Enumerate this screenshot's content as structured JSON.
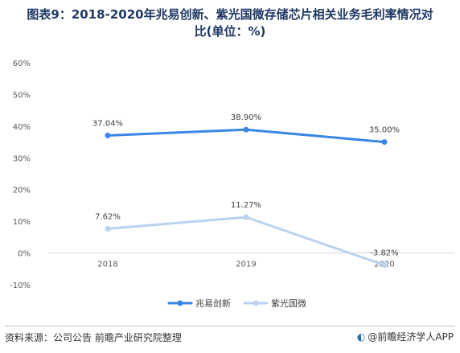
{
  "title": {
    "line1": "图表9：2018-2020年兆易创新、紫光国微存储芯片相关业务毛利率情况对",
    "line2": "比(单位：%)"
  },
  "chart_data": {
    "type": "line",
    "categories": [
      "2018",
      "2019",
      "2020"
    ],
    "series": [
      {
        "name": "兆易创新",
        "values": [
          37.04,
          38.9,
          35.0
        ],
        "labels": [
          "37.04%",
          "38.90%",
          "35.00%"
        ],
        "color": "#3a86e5"
      },
      {
        "name": "紫光国微",
        "values": [
          7.62,
          11.27,
          -3.82
        ],
        "labels": [
          "7.62%",
          "11.27%",
          "-3.82%"
        ],
        "color": "#b8d2f0"
      }
    ],
    "ylim": [
      -10,
      60
    ],
    "yticks": [
      -10,
      0,
      10,
      20,
      30,
      40,
      50,
      60
    ],
    "ytick_labels": [
      "-10%",
      "0%",
      "10%",
      "20%",
      "30%",
      "40%",
      "50%",
      "60%"
    ],
    "grid": false,
    "legend_position": "bottom-center"
  },
  "footer": {
    "source": "资料来源：公司公告  前瞻产业研究院整理",
    "brand": "@前瞻经济学人APP"
  }
}
